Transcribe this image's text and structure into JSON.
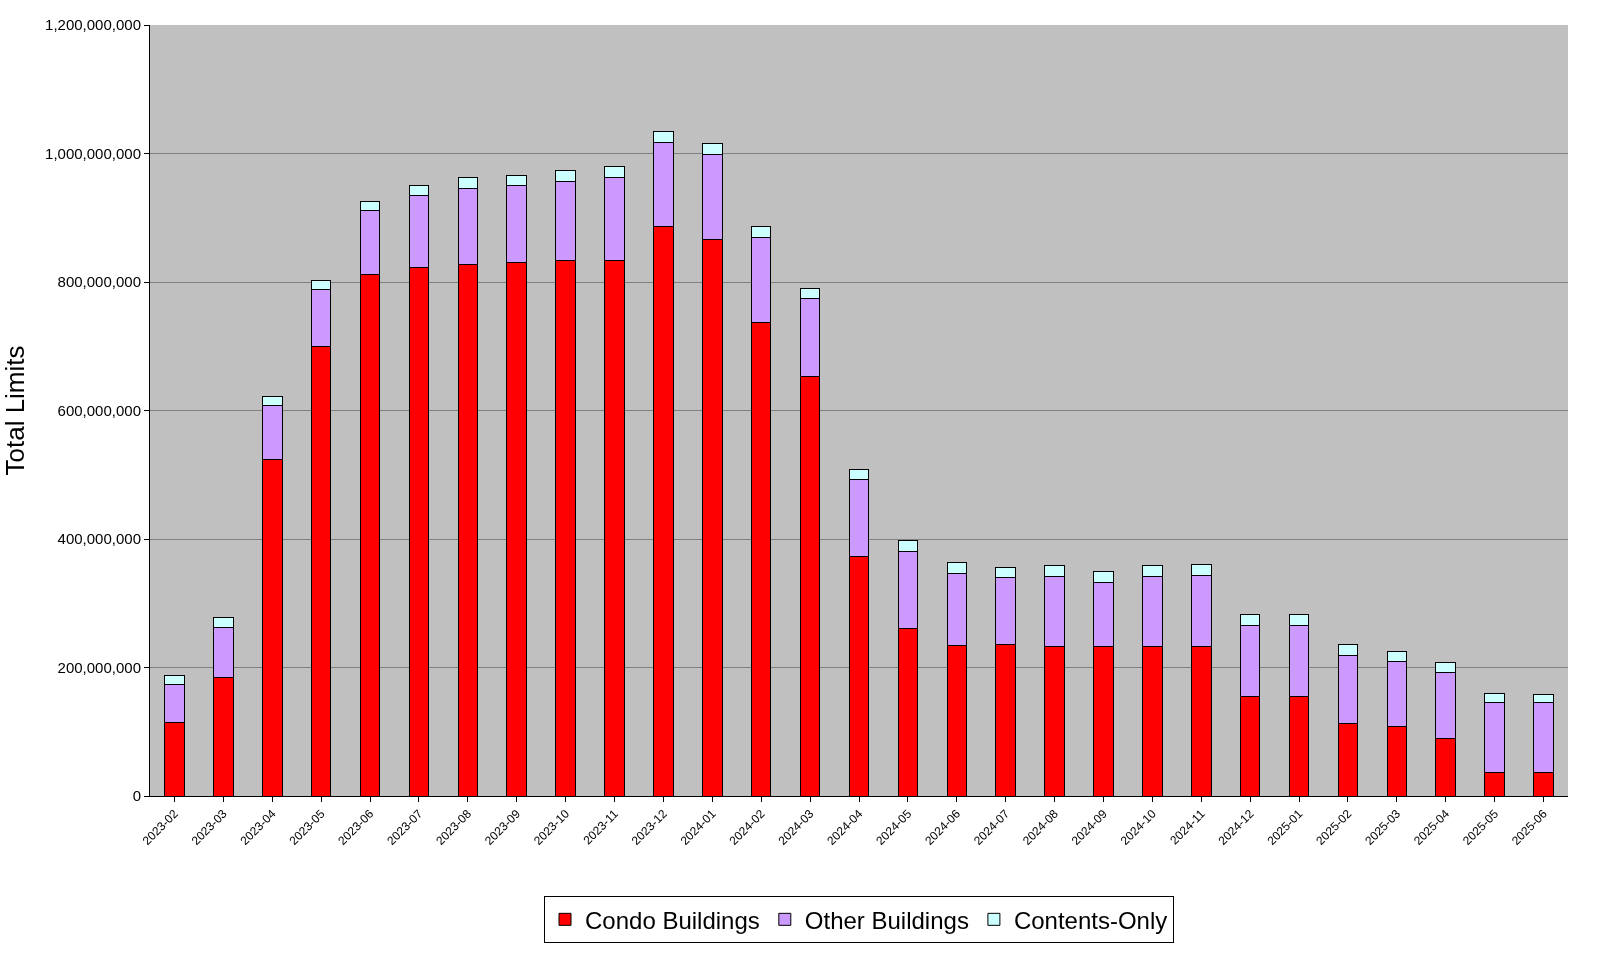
{
  "chart_data": {
    "type": "bar",
    "stacked": true,
    "ylabel": "Total Limits",
    "categories": [
      "2023-02",
      "2023-03",
      "2023-04",
      "2023-05",
      "2023-06",
      "2023-07",
      "2023-08",
      "2023-09",
      "2023-10",
      "2023-11",
      "2023-12",
      "2024-01",
      "2024-02",
      "2024-03",
      "2024-04",
      "2024-05",
      "2024-06",
      "2024-07",
      "2024-08",
      "2024-09",
      "2024-10",
      "2024-11",
      "2024-12",
      "2025-01",
      "2025-02",
      "2025-03",
      "2025-04",
      "2025-05",
      "2025-06"
    ],
    "series": [
      {
        "name": "Condo Buildings",
        "color": "#ff0000",
        "values": [
          115000000,
          185000000,
          523000000,
          700000000,
          812000000,
          822000000,
          828000000,
          830000000,
          833000000,
          833000000,
          887000000,
          866000000,
          737000000,
          653000000,
          372000000,
          260000000,
          235000000,
          236000000,
          232000000,
          232000000,
          232000000,
          232000000,
          155000000,
          155000000,
          113000000,
          108000000,
          90000000,
          37000000,
          37000000
        ]
      },
      {
        "name": "Other Buildings",
        "color": "#cc99ff",
        "values": [
          58000000,
          78000000,
          85000000,
          88000000,
          100000000,
          113000000,
          117000000,
          120000000,
          124000000,
          129000000,
          130000000,
          132000000,
          133000000,
          122000000,
          120000000,
          121000000,
          112000000,
          104000000,
          110000000,
          101000000,
          109000000,
          111000000,
          110000000,
          110000000,
          105000000,
          102000000,
          102000000,
          108000000,
          108000000
        ]
      },
      {
        "name": "Contents-Only",
        "color": "#ccffff",
        "values": [
          14000000,
          15000000,
          14000000,
          14000000,
          14000000,
          15000000,
          17000000,
          16000000,
          17000000,
          17000000,
          18000000,
          17000000,
          16000000,
          15000000,
          16000000,
          17000000,
          16000000,
          16000000,
          16000000,
          17000000,
          17000000,
          18000000,
          17000000,
          17000000,
          18000000,
          15000000,
          16000000,
          15000000,
          13000000
        ]
      }
    ],
    "ylim": [
      0,
      1200000000
    ],
    "yticks": [
      {
        "value": 0,
        "label": "0"
      },
      {
        "value": 200000000,
        "label": "200,000,000"
      },
      {
        "value": 400000000,
        "label": "400,000,000"
      },
      {
        "value": 600000000,
        "label": "600,000,000"
      },
      {
        "value": 800000000,
        "label": "800,000,000"
      },
      {
        "value": 1000000000,
        "label": "1,000,000,000"
      },
      {
        "value": 1200000000,
        "label": "1,200,000,000"
      }
    ],
    "grid": "y",
    "legend": "bottom"
  }
}
